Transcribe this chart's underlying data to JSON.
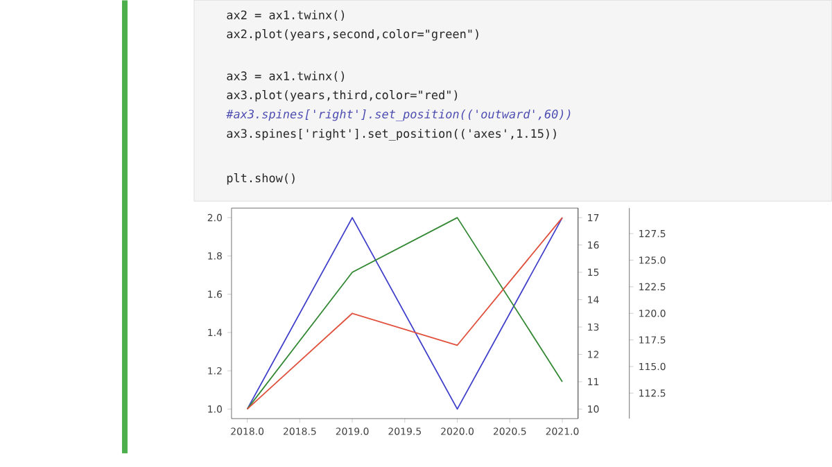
{
  "chart_data": {
    "type": "line",
    "x": [
      2018,
      2019,
      2020,
      2021
    ],
    "series": [
      {
        "color": "#3f3fcc",
        "values": [
          1,
          2,
          1,
          2
        ]
      },
      {
        "color": "#338833",
        "axis": "y2",
        "values": [
          10,
          15,
          17,
          11
        ]
      },
      {
        "color": "#e0503c",
        "axis": "y3",
        "values": [
          111,
          120,
          117,
          129
        ]
      }
    ],
    "xlim": [
      2017.85,
      2021.15
    ],
    "xticks": [
      {
        "value": 2018,
        "label": "2018.0"
      },
      {
        "value": 2018.5,
        "label": "2018.5"
      },
      {
        "value": 2019,
        "label": "2019.0"
      },
      {
        "value": 2019.5,
        "label": "2019.5"
      },
      {
        "value": 2020,
        "label": "2020.0"
      },
      {
        "value": 2020.5,
        "label": "2020.5"
      },
      {
        "value": 2021,
        "label": "2021.0"
      }
    ],
    "ylim": [
      0.95,
      2.05
    ],
    "yticks": [
      {
        "value": 1,
        "label": "1.0"
      },
      1.2,
      1.4,
      1.6,
      1.8,
      {
        "value": 2,
        "label": "2.0"
      }
    ],
    "y2lim": [
      9.65,
      17.35
    ],
    "y2ticks": [
      10,
      11,
      12,
      13,
      14,
      15,
      16,
      17
    ],
    "y3lim": [
      110.1,
      129.9
    ],
    "y3ticks": [
      112.5,
      {
        "value": 115,
        "label": "115.0"
      },
      117.5,
      {
        "value": 120,
        "label": "120.0"
      },
      122.5,
      {
        "value": 125,
        "label": "125.0"
      },
      127.5
    ],
    "annotations": [
      "ax2 = ax1.twinx()",
      "ax2.plot(years,second,color=\"green\")",
      "ax3 = ax1.twinx()",
      "ax3.plot(years,third,color=\"red\")",
      "#ax3.spines['right'].set_position(('outward',60))",
      "ax3.spines['right'].set_position(('axes',1.15))",
      "plt.show()"
    ]
  }
}
